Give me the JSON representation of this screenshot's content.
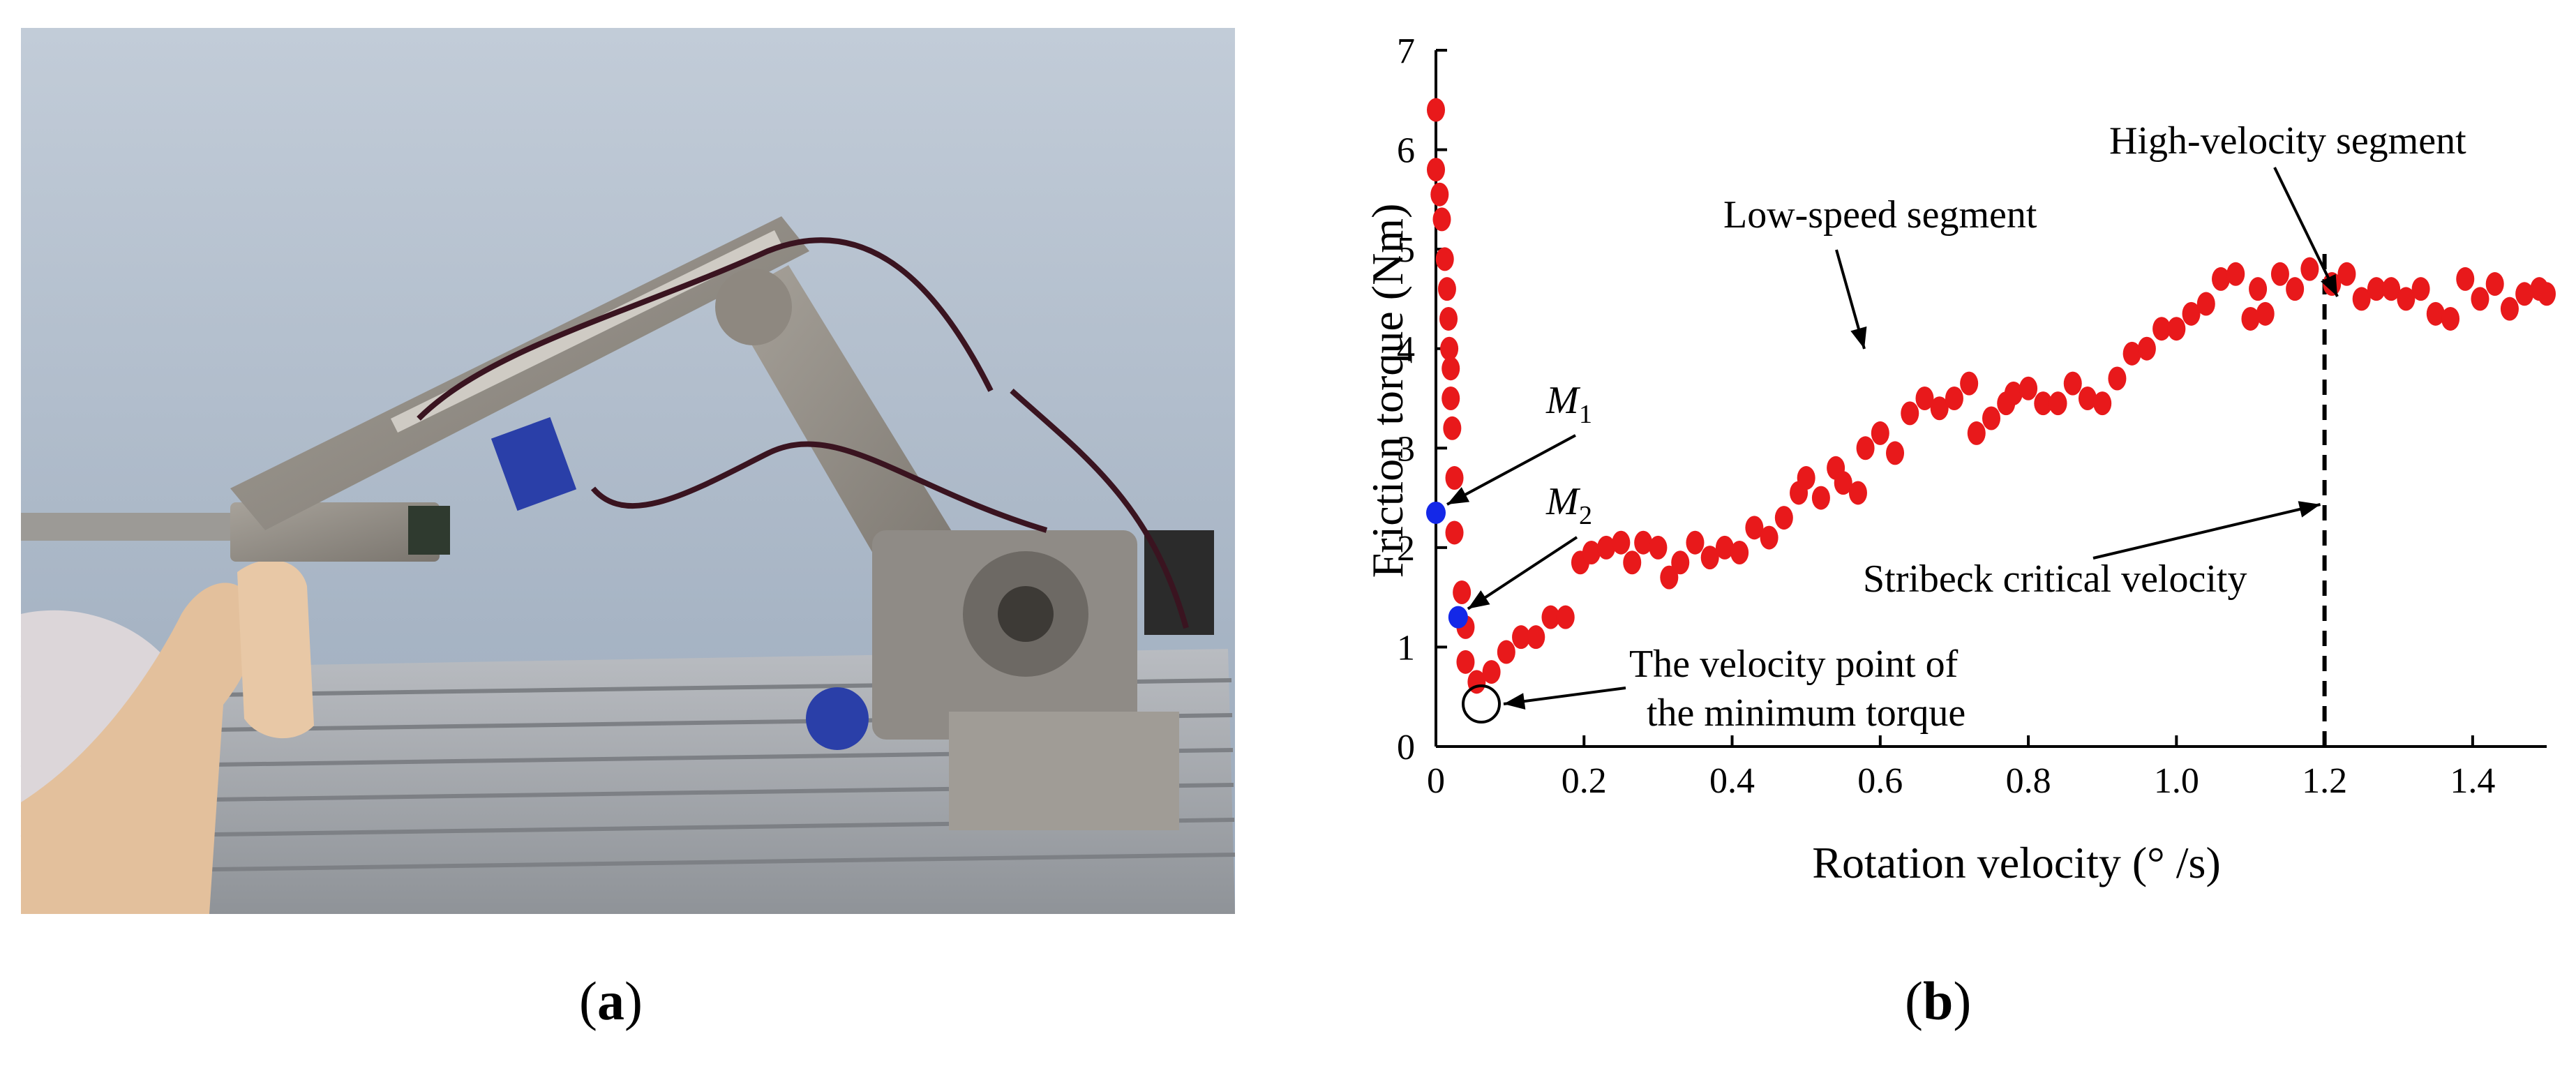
{
  "figure": {
    "caption_a_open": "(",
    "caption_a_letter": "a",
    "caption_a_close": ")",
    "caption_b_open": "(",
    "caption_b_letter": "b",
    "caption_b_close": ")"
  },
  "chart_data": {
    "type": "scatter",
    "title": "",
    "xlabel": "Rotation velocity (° /s)",
    "ylabel": "Friction torque (Nm)",
    "xlim": [
      0,
      1.5
    ],
    "ylim": [
      0,
      7
    ],
    "x_ticks": [
      "0",
      "0.2",
      "0.4",
      "0.6",
      "0.8",
      "1.0",
      "1.2",
      "1.4"
    ],
    "y_ticks": [
      "0",
      "1",
      "2",
      "3",
      "4",
      "5",
      "6",
      "7"
    ],
    "grid": false,
    "point_color": "#e8191b",
    "highlight_color": "#1428e8",
    "series": [
      {
        "points": [
          [
            0.0,
            6.4
          ],
          [
            0.0,
            5.8
          ],
          [
            0.005,
            5.55
          ],
          [
            0.008,
            5.3
          ],
          [
            0.012,
            4.9
          ],
          [
            0.015,
            4.6
          ],
          [
            0.017,
            4.3
          ],
          [
            0.018,
            4.0
          ],
          [
            0.02,
            3.8
          ],
          [
            0.02,
            3.5
          ],
          [
            0.022,
            3.2
          ],
          [
            0.025,
            2.7
          ],
          [
            0.025,
            2.15
          ],
          [
            0.035,
            1.55
          ],
          [
            0.04,
            1.2
          ],
          [
            0.04,
            0.85
          ],
          [
            0.055,
            0.65
          ],
          [
            0.075,
            0.75
          ],
          [
            0.095,
            0.95
          ],
          [
            0.115,
            1.1
          ],
          [
            0.135,
            1.1
          ],
          [
            0.155,
            1.3
          ],
          [
            0.175,
            1.3
          ],
          [
            0.195,
            1.85
          ],
          [
            0.21,
            1.95
          ],
          [
            0.23,
            2.0
          ],
          [
            0.25,
            2.05
          ],
          [
            0.265,
            1.85
          ],
          [
            0.28,
            2.05
          ],
          [
            0.3,
            2.0
          ],
          [
            0.315,
            1.7
          ],
          [
            0.33,
            1.85
          ],
          [
            0.35,
            2.05
          ],
          [
            0.37,
            1.9
          ],
          [
            0.39,
            2.0
          ],
          [
            0.41,
            1.95
          ],
          [
            0.43,
            2.2
          ],
          [
            0.45,
            2.1
          ],
          [
            0.47,
            2.3
          ],
          [
            0.49,
            2.55
          ],
          [
            0.5,
            2.7
          ],
          [
            0.52,
            2.5
          ],
          [
            0.54,
            2.8
          ],
          [
            0.55,
            2.65
          ],
          [
            0.57,
            2.55
          ],
          [
            0.58,
            3.0
          ],
          [
            0.6,
            3.15
          ],
          [
            0.62,
            2.95
          ],
          [
            0.64,
            3.35
          ],
          [
            0.66,
            3.5
          ],
          [
            0.68,
            3.4
          ],
          [
            0.7,
            3.5
          ],
          [
            0.72,
            3.65
          ],
          [
            0.73,
            3.15
          ],
          [
            0.75,
            3.3
          ],
          [
            0.77,
            3.45
          ],
          [
            0.78,
            3.55
          ],
          [
            0.8,
            3.6
          ],
          [
            0.82,
            3.45
          ],
          [
            0.84,
            3.45
          ],
          [
            0.86,
            3.65
          ],
          [
            0.88,
            3.5
          ],
          [
            0.9,
            3.45
          ],
          [
            0.92,
            3.7
          ],
          [
            0.94,
            3.95
          ],
          [
            0.96,
            4.0
          ],
          [
            0.98,
            4.2
          ],
          [
            1.0,
            4.2
          ],
          [
            1.02,
            4.35
          ],
          [
            1.04,
            4.45
          ],
          [
            1.06,
            4.7
          ],
          [
            1.08,
            4.75
          ],
          [
            1.1,
            4.3
          ],
          [
            1.11,
            4.6
          ],
          [
            1.12,
            4.35
          ],
          [
            1.14,
            4.75
          ],
          [
            1.16,
            4.6
          ],
          [
            1.18,
            4.8
          ],
          [
            1.21,
            4.65
          ],
          [
            1.23,
            4.75
          ],
          [
            1.25,
            4.5
          ],
          [
            1.27,
            4.6
          ],
          [
            1.29,
            4.6
          ],
          [
            1.31,
            4.5
          ],
          [
            1.33,
            4.6
          ],
          [
            1.35,
            4.35
          ],
          [
            1.37,
            4.3
          ],
          [
            1.39,
            4.7
          ],
          [
            1.41,
            4.5
          ],
          [
            1.43,
            4.65
          ],
          [
            1.45,
            4.4
          ],
          [
            1.47,
            4.55
          ],
          [
            1.49,
            4.6
          ],
          [
            1.5,
            4.55
          ]
        ]
      }
    ],
    "highlighted_points": [
      {
        "label": "M1",
        "x": 0.0,
        "y": 2.35
      },
      {
        "label": "M2",
        "x": 0.03,
        "y": 1.3
      }
    ],
    "annotations": {
      "m1_base": "M",
      "m1_sub": "1",
      "m2_base": "M",
      "m2_sub": "2",
      "low_speed": "Low-speed segment",
      "high_velocity": "High-velocity segment",
      "stribeck": "Stribeck critical velocity",
      "min_torque_line1": "The velocity point of",
      "min_torque_line2": "the minimum torque"
    },
    "reference_line": {
      "x": 1.2,
      "style": "dashed"
    }
  }
}
